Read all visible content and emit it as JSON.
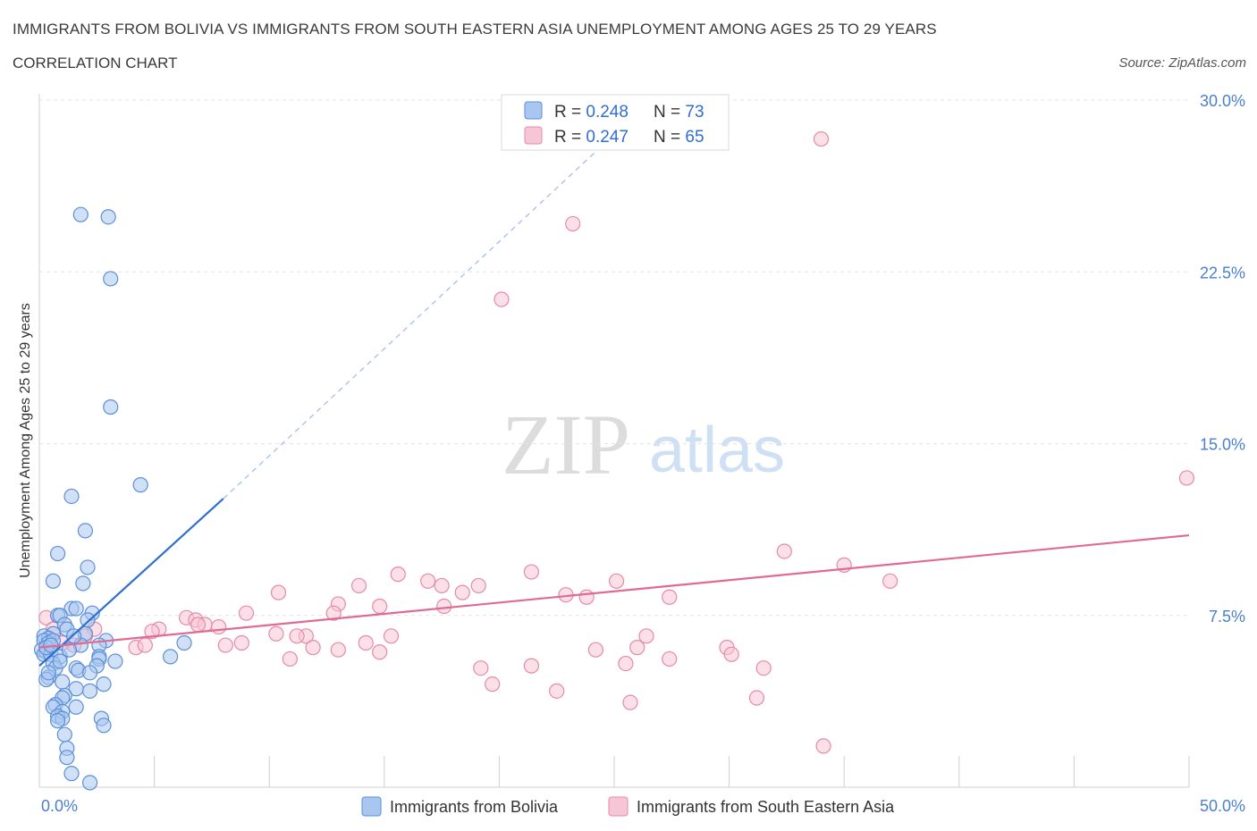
{
  "title": "IMMIGRANTS FROM BOLIVIA VS IMMIGRANTS FROM SOUTH EASTERN ASIA UNEMPLOYMENT AMONG AGES 25 TO 29 YEARS",
  "subtitle": "CORRELATION CHART",
  "source": "Source: ZipAtlas.com",
  "watermark": {
    "zip": "ZIP",
    "atlas": "atlas"
  },
  "colors": {
    "bolivia_fill": "#a9c6f0",
    "bolivia_stroke": "#5b8fd8",
    "bolivia_line": "#2f6fcf",
    "sea_fill": "#f7c6d6",
    "sea_stroke": "#e58aa8",
    "sea_line": "#e06a94",
    "tick_text": "#4a7fd0",
    "grid": "#e4e4e4"
  },
  "legend": {
    "rows": [
      {
        "r_label": "R = ",
        "r_value": "0.248",
        "n_label": "N = ",
        "n_value": "73"
      },
      {
        "r_label": "R = ",
        "r_value": "0.247",
        "n_label": "N = ",
        "n_value": "65"
      }
    ]
  },
  "chart_data": {
    "type": "scatter",
    "title": "IMMIGRANTS FROM BOLIVIA VS IMMIGRANTS FROM SOUTH EASTERN ASIA UNEMPLOYMENT AMONG AGES 25 TO 29 YEARS",
    "subtitle": "CORRELATION CHART",
    "xlabel": "",
    "ylabel": "Unemployment Among Ages 25 to 29 years",
    "xlim": [
      0,
      50
    ],
    "ylim": [
      0,
      30
    ],
    "x_tick_labels": [
      {
        "value": 0,
        "label": "0.0%"
      },
      {
        "value": 50,
        "label": "50.0%"
      }
    ],
    "y_tick_labels": [
      {
        "value": 7.5,
        "label": "7.5%"
      },
      {
        "value": 15,
        "label": "15.0%"
      },
      {
        "value": 22.5,
        "label": "22.5%"
      },
      {
        "value": 30,
        "label": "30.0%"
      }
    ],
    "x_minor_ticks": [
      5,
      10,
      15,
      20,
      25,
      30,
      35,
      40,
      45,
      50
    ],
    "grid": true,
    "legend_position": "top-center",
    "series": [
      {
        "name": "Immigrants from Bolivia",
        "R": 0.248,
        "N": 73,
        "trend": {
          "x0": 0,
          "y0": 5.3,
          "x1": 8,
          "y1": 12.6,
          "extend_to_x": 25,
          "extend_to_y": 28.5
        },
        "points": [
          [
            1.8,
            25.0
          ],
          [
            3.0,
            24.9
          ],
          [
            3.1,
            22.2
          ],
          [
            3.1,
            16.6
          ],
          [
            4.4,
            13.2
          ],
          [
            1.4,
            12.7
          ],
          [
            2.0,
            11.2
          ],
          [
            0.8,
            10.2
          ],
          [
            2.1,
            9.6
          ],
          [
            0.6,
            9.0
          ],
          [
            1.9,
            8.9
          ],
          [
            1.4,
            7.8
          ],
          [
            1.6,
            7.8
          ],
          [
            2.3,
            7.6
          ],
          [
            0.8,
            7.5
          ],
          [
            0.9,
            7.5
          ],
          [
            2.1,
            7.3
          ],
          [
            1.1,
            7.1
          ],
          [
            1.2,
            6.9
          ],
          [
            0.6,
            6.7
          ],
          [
            2.0,
            6.7
          ],
          [
            0.2,
            6.6
          ],
          [
            0.4,
            6.5
          ],
          [
            0.2,
            6.4
          ],
          [
            0.4,
            6.3
          ],
          [
            0.6,
            6.4
          ],
          [
            2.9,
            6.4
          ],
          [
            6.3,
            6.3
          ],
          [
            1.8,
            6.2
          ],
          [
            2.6,
            6.2
          ],
          [
            0.1,
            6.0
          ],
          [
            0.3,
            5.9
          ],
          [
            0.2,
            5.8
          ],
          [
            0.5,
            5.8
          ],
          [
            0.9,
            5.7
          ],
          [
            2.6,
            5.7
          ],
          [
            2.6,
            5.6
          ],
          [
            5.7,
            5.7
          ],
          [
            3.3,
            5.5
          ],
          [
            0.6,
            5.4
          ],
          [
            0.7,
            5.2
          ],
          [
            1.6,
            5.2
          ],
          [
            2.5,
            5.3
          ],
          [
            1.7,
            5.1
          ],
          [
            2.2,
            5.0
          ],
          [
            0.4,
            4.8
          ],
          [
            0.3,
            4.7
          ],
          [
            1.0,
            4.6
          ],
          [
            2.8,
            4.5
          ],
          [
            1.6,
            4.3
          ],
          [
            2.2,
            4.2
          ],
          [
            1.1,
            4.0
          ],
          [
            1.0,
            3.9
          ],
          [
            0.7,
            3.6
          ],
          [
            1.6,
            3.5
          ],
          [
            0.6,
            3.5
          ],
          [
            1.0,
            3.3
          ],
          [
            0.8,
            3.1
          ],
          [
            1.0,
            3.0
          ],
          [
            0.8,
            2.9
          ],
          [
            2.7,
            3.0
          ],
          [
            2.8,
            2.7
          ],
          [
            1.1,
            2.3
          ],
          [
            1.2,
            1.7
          ],
          [
            1.2,
            1.3
          ],
          [
            1.4,
            0.6
          ],
          [
            2.2,
            0.2
          ],
          [
            0.3,
            6.1
          ],
          [
            0.5,
            6.2
          ],
          [
            1.3,
            6.0
          ],
          [
            0.9,
            5.5
          ],
          [
            1.5,
            6.6
          ],
          [
            0.4,
            5.0
          ]
        ]
      },
      {
        "name": "Immigrants from South Eastern Asia",
        "R": 0.247,
        "N": 65,
        "trend": {
          "x0": 0,
          "y0": 6.1,
          "x1": 50,
          "y1": 11.0
        },
        "points": [
          [
            34.0,
            28.3
          ],
          [
            23.2,
            24.6
          ],
          [
            20.1,
            21.3
          ],
          [
            49.9,
            13.5
          ],
          [
            32.4,
            10.3
          ],
          [
            35.0,
            9.7
          ],
          [
            21.4,
            9.4
          ],
          [
            15.6,
            9.3
          ],
          [
            16.9,
            9.0
          ],
          [
            25.1,
            9.0
          ],
          [
            37.0,
            9.0
          ],
          [
            13.9,
            8.8
          ],
          [
            17.5,
            8.8
          ],
          [
            19.1,
            8.8
          ],
          [
            10.4,
            8.5
          ],
          [
            18.4,
            8.5
          ],
          [
            22.9,
            8.4
          ],
          [
            23.8,
            8.3
          ],
          [
            27.4,
            8.3
          ],
          [
            13.0,
            8.0
          ],
          [
            14.8,
            7.9
          ],
          [
            17.6,
            7.9
          ],
          [
            9.0,
            7.6
          ],
          [
            12.8,
            7.6
          ],
          [
            6.4,
            7.4
          ],
          [
            6.8,
            7.3
          ],
          [
            7.2,
            7.1
          ],
          [
            7.8,
            7.0
          ],
          [
            6.9,
            7.1
          ],
          [
            5.2,
            6.9
          ],
          [
            4.9,
            6.8
          ],
          [
            10.3,
            6.7
          ],
          [
            11.6,
            6.6
          ],
          [
            11.2,
            6.6
          ],
          [
            15.3,
            6.6
          ],
          [
            26.4,
            6.6
          ],
          [
            8.8,
            6.3
          ],
          [
            14.2,
            6.3
          ],
          [
            4.2,
            6.1
          ],
          [
            4.6,
            6.2
          ],
          [
            8.1,
            6.2
          ],
          [
            11.9,
            6.1
          ],
          [
            13.0,
            6.0
          ],
          [
            24.2,
            6.0
          ],
          [
            26.0,
            6.1
          ],
          [
            29.9,
            6.1
          ],
          [
            14.8,
            5.9
          ],
          [
            30.1,
            5.8
          ],
          [
            10.9,
            5.6
          ],
          [
            27.4,
            5.6
          ],
          [
            25.5,
            5.4
          ],
          [
            21.4,
            5.3
          ],
          [
            31.5,
            5.2
          ],
          [
            19.2,
            5.2
          ],
          [
            19.7,
            4.5
          ],
          [
            22.5,
            4.2
          ],
          [
            31.2,
            3.9
          ],
          [
            25.7,
            3.7
          ],
          [
            34.1,
            1.8
          ],
          [
            2.4,
            6.9
          ],
          [
            1.5,
            6.2
          ],
          [
            2.0,
            6.6
          ],
          [
            1.0,
            6.3
          ],
          [
            0.3,
            7.4
          ],
          [
            0.6,
            6.9
          ]
        ]
      }
    ]
  },
  "bottom_legend": {
    "items": [
      {
        "label": "Immigrants from Bolivia"
      },
      {
        "label": "Immigrants from South Eastern Asia"
      }
    ]
  }
}
